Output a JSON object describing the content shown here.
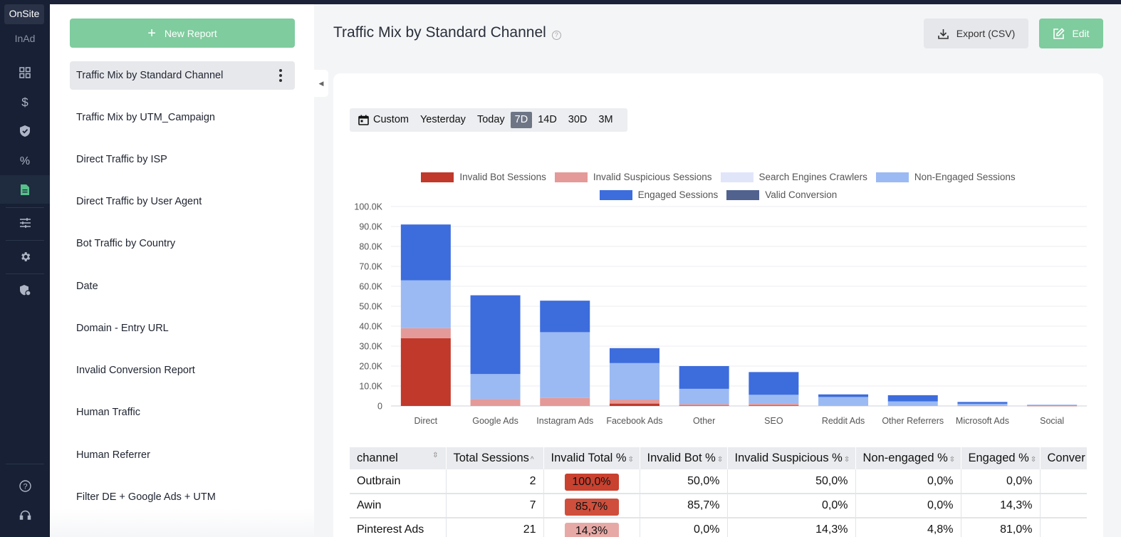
{
  "rail": {
    "tab_onsite": "OnSite",
    "tab_inad": "InAd",
    "icons": [
      "grid-icon",
      "dollar-icon",
      "shield-check-icon",
      "percent-icon",
      "document-icon",
      "sliders-icon",
      "gear-icon",
      "shield-gear-icon",
      "help-icon",
      "support-icon"
    ]
  },
  "sidebar": {
    "new_report_label": "New Report",
    "reports": [
      "Traffic Mix by Standard Channel",
      "Traffic Mix by UTM_Campaign",
      "Direct Traffic by ISP",
      "Direct Traffic by User Agent",
      "Bot Traffic by Country",
      "Date",
      "Domain - Entry URL",
      "Invalid Conversion Report",
      "Human Traffic",
      "Human Referrer",
      "Filter DE + Google Ads + UTM"
    ],
    "selected_index": 0
  },
  "header": {
    "title": "Traffic Mix by Standard Channel",
    "help_glyph": "?",
    "export_label": "Export (CSV)",
    "edit_label": "Edit"
  },
  "range": {
    "options": [
      "Custom",
      "Yesterday",
      "Today",
      "7D",
      "14D",
      "30D",
      "3M"
    ],
    "active": "7D"
  },
  "colors": {
    "invalid_bot": "#c0392b",
    "invalid_suspicious": "#e49a98",
    "crawlers": "#e1e5fa",
    "non_engaged": "#9bbaf3",
    "engaged": "#3d6cdc",
    "valid_conversion": "#51628f"
  },
  "chart_data": {
    "type": "bar",
    "stacked": true,
    "categories": [
      "Direct",
      "Google Ads",
      "Instagram Ads",
      "Facebook Ads",
      "Other",
      "SEO",
      "Reddit Ads",
      "Other Referrers",
      "Microsoft Ads",
      "Social"
    ],
    "series": [
      {
        "name": "Invalid Bot Sessions",
        "color": "#c0392b",
        "values": [
          34000,
          0,
          0,
          1200,
          200,
          300,
          0,
          0,
          0,
          100
        ]
      },
      {
        "name": "Invalid Suspicious Sessions",
        "color": "#e49a98",
        "values": [
          5000,
          3500,
          4000,
          2000,
          700,
          1000,
          300,
          200,
          100,
          200
        ]
      },
      {
        "name": "Search Engines Crawlers",
        "color": "#e1e5fa",
        "values": [
          0,
          0,
          0,
          0,
          0,
          0,
          0,
          0,
          0,
          0
        ]
      },
      {
        "name": "Non-Engaged Sessions",
        "color": "#9bbaf3",
        "values": [
          24000,
          12500,
          33000,
          18300,
          7700,
          4300,
          4200,
          2100,
          1000,
          100
        ]
      },
      {
        "name": "Engaged Sessions",
        "color": "#3d6cdc",
        "values": [
          28000,
          39500,
          15800,
          7500,
          11400,
          11400,
          1300,
          3100,
          900,
          100
        ]
      },
      {
        "name": "Valid Conversion",
        "color": "#51628f",
        "values": [
          0,
          0,
          0,
          0,
          0,
          0,
          0,
          0,
          0,
          0
        ]
      }
    ],
    "yticks": [
      "0",
      "10.0K",
      "20.0K",
      "30.0K",
      "40.0K",
      "50.0K",
      "60.0K",
      "70.0K",
      "80.0K",
      "90.0K",
      "100.0K"
    ],
    "ylim": [
      0,
      100000
    ],
    "legend_position": "top",
    "grid": true
  },
  "table": {
    "headers": [
      "channel",
      "Total Sessions",
      "Invalid Total %",
      "Invalid Bot %",
      "Invalid Suspicious %",
      "Non-engaged %",
      "Engaged %",
      "Conver"
    ],
    "sort_glyphs": [
      "⇳",
      "^",
      "⇳",
      "⇳",
      "⇳",
      "⇳",
      "⇳",
      ""
    ],
    "rows": [
      {
        "channel": "Outbrain",
        "total": "2",
        "invalid_total": "100,0%",
        "badge_color": "#c9412f",
        "bot": "50,0%",
        "suspicious": "50,0%",
        "non_engaged": "0,0%",
        "engaged": "0,0%"
      },
      {
        "channel": "Awin",
        "total": "7",
        "invalid_total": "85,7%",
        "badge_color": "#cf4f3c",
        "bot": "85,7%",
        "suspicious": "0,0%",
        "non_engaged": "0,0%",
        "engaged": "14,3%"
      },
      {
        "channel": "Pinterest Ads",
        "total": "21",
        "invalid_total": "14,3%",
        "badge_color": "#e7a9a6",
        "bot": "0,0%",
        "suspicious": "14,3%",
        "non_engaged": "4,8%",
        "engaged": "81,0%"
      }
    ]
  }
}
